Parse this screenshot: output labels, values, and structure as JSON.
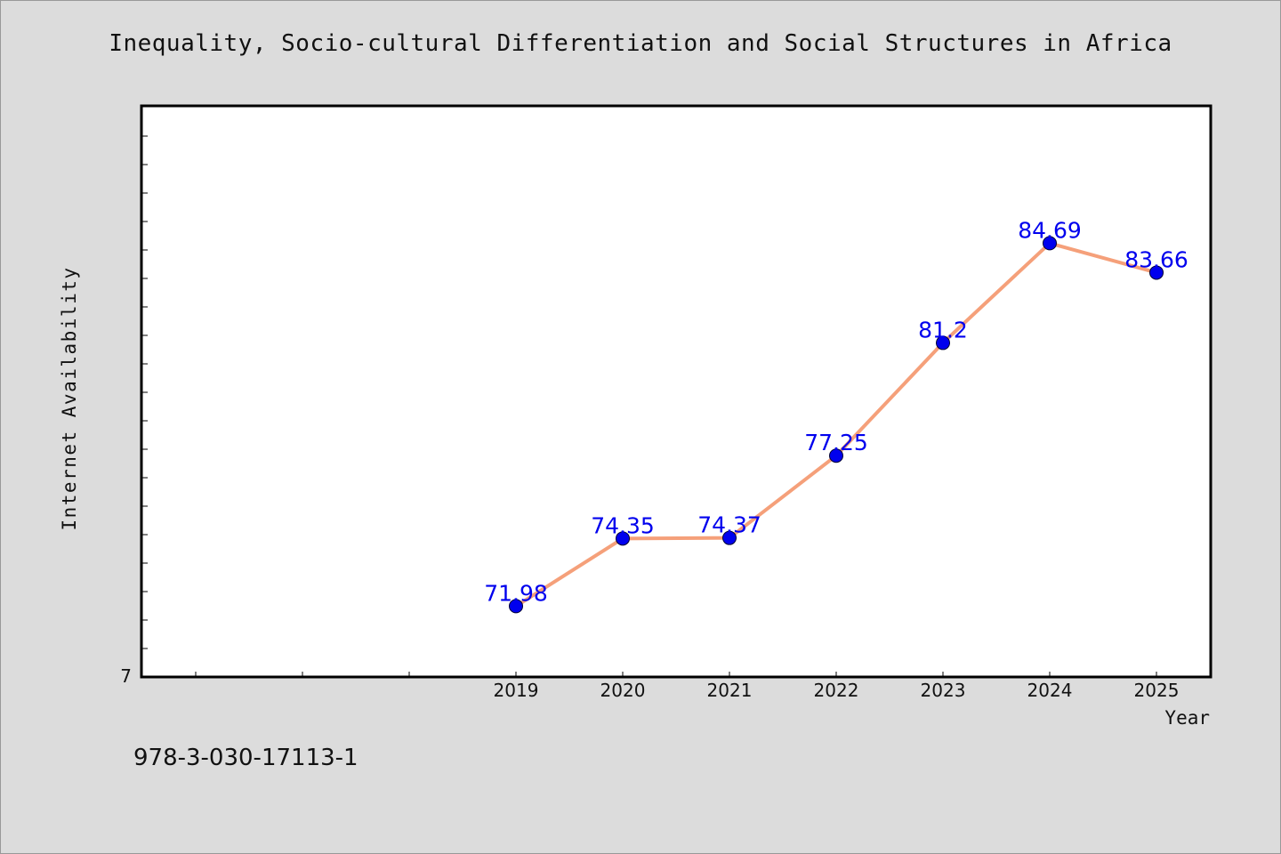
{
  "chart_data": {
    "type": "line",
    "title": "Inequality, Socio-cultural Differentiation and Social Structures in Africa",
    "xlabel": "Year",
    "ylabel": "Internet Availability",
    "categories": [
      "2019",
      "2020",
      "2021",
      "2022",
      "2023",
      "2024",
      "2025"
    ],
    "series": [
      {
        "values": [
          71.98,
          74.35,
          74.37,
          77.25,
          81.2,
          84.69,
          83.66
        ],
        "labels": [
          "71.98",
          "74.35",
          "74.37",
          "77.25",
          "81.2",
          "84.69",
          "83.66"
        ]
      }
    ],
    "ylim": [
      69.5,
      89.5
    ],
    "y_tick_labels": [
      "7"
    ],
    "grid": false,
    "legend": "none",
    "line_color": "#f5a07a",
    "marker_color": "#0000ee",
    "label_color": "#0000ee"
  },
  "footer": {
    "isbn": "978-3-030-17113-1"
  }
}
